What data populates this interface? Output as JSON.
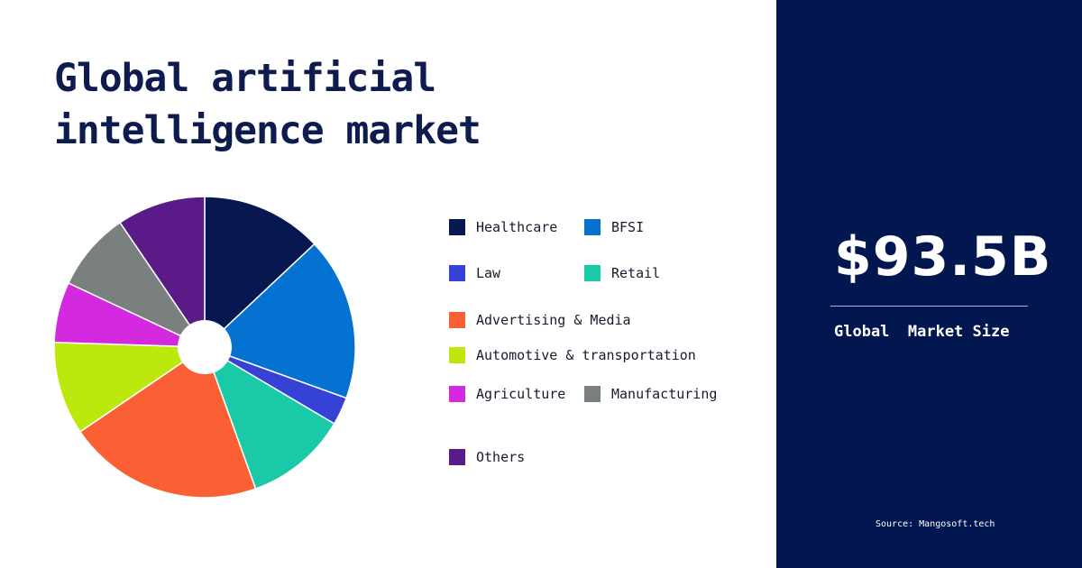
{
  "chart_data": {
    "type": "pie",
    "title": "Global artificial intelligence market",
    "title_lines": [
      "Global artificial",
      "intelligence market"
    ],
    "categories": [
      "Healthcare",
      "BFSI",
      "Law",
      "Retail",
      "Advertising & Media",
      "Automotive & transportation",
      "Agriculture",
      "Manufacturing",
      "Others"
    ],
    "values": [
      13,
      17.5,
      3,
      11,
      21,
      10,
      6.5,
      8.5,
      9.5
    ],
    "colors": [
      "#06184f",
      "#0571d0",
      "#3641d6",
      "#19c9a8",
      "#fb5f34",
      "#bde80e",
      "#d32ae0",
      "#7a807e",
      "#5a1a87"
    ],
    "legend_position": "right"
  },
  "summary": {
    "value": "$93.5B",
    "caption": "Global  Market Size",
    "source": "Source: Mangosoft.tech"
  }
}
